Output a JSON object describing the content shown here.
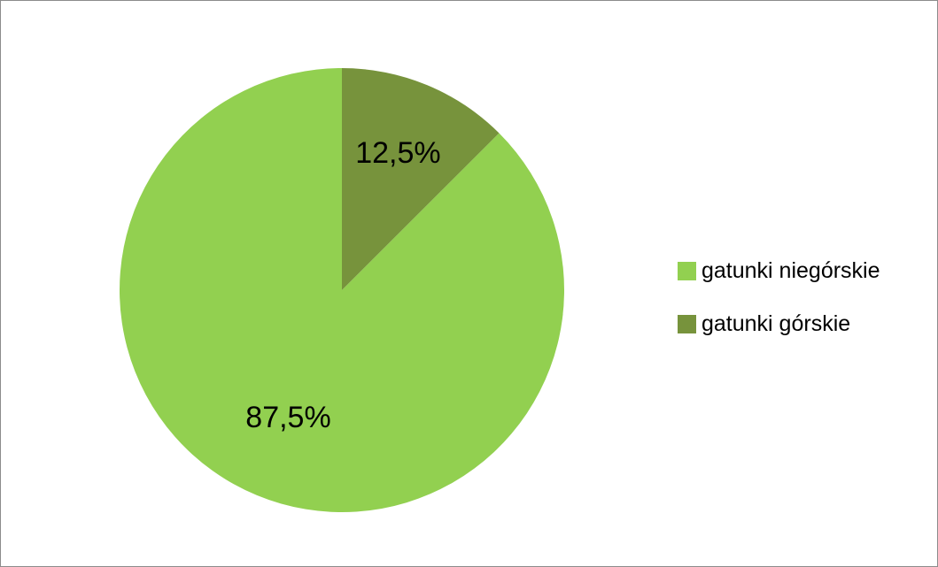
{
  "chart_data": {
    "type": "pie",
    "title": "",
    "categories": [
      "gatunki niegórskie",
      "gatunki górskie"
    ],
    "values": [
      87.5,
      12.5
    ],
    "data_labels": [
      "87,5%",
      "12,5%"
    ],
    "unit": "%",
    "start": "12-o'clock",
    "direction": "counterclockwise",
    "legend_placement": "right",
    "colors": [
      "#92d050",
      "#77933c"
    ]
  }
}
